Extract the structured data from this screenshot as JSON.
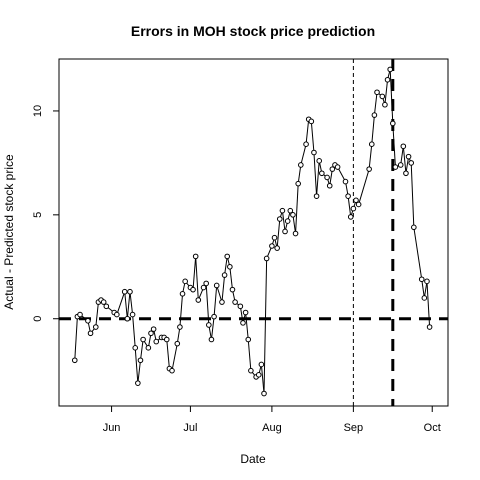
{
  "chart_data": {
    "type": "line",
    "title": "Errors in MOH stock price prediction",
    "xlabel": "Date",
    "ylabel": "Actual - Predicted stock price",
    "x_ticks": [
      {
        "date": "2016-06-01",
        "label": "Jun"
      },
      {
        "date": "2016-07-01",
        "label": "Jul"
      },
      {
        "date": "2016-08-01",
        "label": "Aug"
      },
      {
        "date": "2016-09-01",
        "label": "Sep"
      },
      {
        "date": "2016-10-01",
        "label": "Oct"
      }
    ],
    "y_ticks": [
      0,
      5,
      10
    ],
    "xlim": [
      "2016-05-12",
      "2016-10-07"
    ],
    "ylim": [
      -4.2,
      12.5
    ],
    "series": [
      {
        "values": [
          {
            "x": "2016-05-18",
            "y": -2.0
          },
          {
            "x": "2016-05-19",
            "y": 0.1
          },
          {
            "x": "2016-05-20",
            "y": 0.2
          },
          {
            "x": "2016-05-23",
            "y": -0.1
          },
          {
            "x": "2016-05-24",
            "y": -0.7
          },
          {
            "x": "2016-05-26",
            "y": -0.4
          },
          {
            "x": "2016-05-27",
            "y": 0.8
          },
          {
            "x": "2016-05-28",
            "y": 0.9
          },
          {
            "x": "2016-05-29",
            "y": 0.8
          },
          {
            "x": "2016-05-30",
            "y": 0.6
          },
          {
            "x": "2016-06-02",
            "y": 0.3
          },
          {
            "x": "2016-06-03",
            "y": 0.2
          },
          {
            "x": "2016-06-06",
            "y": 1.3
          },
          {
            "x": "2016-06-07",
            "y": 0.0
          },
          {
            "x": "2016-06-08",
            "y": 1.3
          },
          {
            "x": "2016-06-09",
            "y": 0.2
          },
          {
            "x": "2016-06-10",
            "y": -1.4
          },
          {
            "x": "2016-06-11",
            "y": -3.1
          },
          {
            "x": "2016-06-12",
            "y": -2.0
          },
          {
            "x": "2016-06-13",
            "y": -1.0
          },
          {
            "x": "2016-06-15",
            "y": -1.4
          },
          {
            "x": "2016-06-16",
            "y": -0.7
          },
          {
            "x": "2016-06-17",
            "y": -0.5
          },
          {
            "x": "2016-06-18",
            "y": -1.1
          },
          {
            "x": "2016-06-20",
            "y": -0.9
          },
          {
            "x": "2016-06-21",
            "y": -0.9
          },
          {
            "x": "2016-06-22",
            "y": -1.0
          },
          {
            "x": "2016-06-23",
            "y": -2.4
          },
          {
            "x": "2016-06-24",
            "y": -2.5
          },
          {
            "x": "2016-06-26",
            "y": -1.2
          },
          {
            "x": "2016-06-27",
            "y": -0.4
          },
          {
            "x": "2016-06-28",
            "y": 1.2
          },
          {
            "x": "2016-06-29",
            "y": 1.8
          },
          {
            "x": "2016-07-01",
            "y": 1.5
          },
          {
            "x": "2016-07-02",
            "y": 1.4
          },
          {
            "x": "2016-07-03",
            "y": 3.0
          },
          {
            "x": "2016-07-04",
            "y": 0.9
          },
          {
            "x": "2016-07-06",
            "y": 1.5
          },
          {
            "x": "2016-07-07",
            "y": 1.7
          },
          {
            "x": "2016-07-08",
            "y": -0.3
          },
          {
            "x": "2016-07-09",
            "y": -1.0
          },
          {
            "x": "2016-07-10",
            "y": 0.1
          },
          {
            "x": "2016-07-11",
            "y": 1.6
          },
          {
            "x": "2016-07-13",
            "y": 0.8
          },
          {
            "x": "2016-07-14",
            "y": 2.1
          },
          {
            "x": "2016-07-15",
            "y": 3.0
          },
          {
            "x": "2016-07-16",
            "y": 2.5
          },
          {
            "x": "2016-07-17",
            "y": 1.4
          },
          {
            "x": "2016-07-18",
            "y": 0.8
          },
          {
            "x": "2016-07-20",
            "y": 0.6
          },
          {
            "x": "2016-07-21",
            "y": -0.2
          },
          {
            "x": "2016-07-22",
            "y": 0.3
          },
          {
            "x": "2016-07-23",
            "y": -1.0
          },
          {
            "x": "2016-07-24",
            "y": -2.5
          },
          {
            "x": "2016-07-26",
            "y": -2.8
          },
          {
            "x": "2016-07-27",
            "y": -2.7
          },
          {
            "x": "2016-07-28",
            "y": -2.2
          },
          {
            "x": "2016-07-29",
            "y": -3.6
          },
          {
            "x": "2016-07-30",
            "y": 2.9
          },
          {
            "x": "2016-08-01",
            "y": 3.5
          },
          {
            "x": "2016-08-02",
            "y": 3.9
          },
          {
            "x": "2016-08-03",
            "y": 3.4
          },
          {
            "x": "2016-08-04",
            "y": 4.8
          },
          {
            "x": "2016-08-05",
            "y": 5.2
          },
          {
            "x": "2016-08-06",
            "y": 4.2
          },
          {
            "x": "2016-08-07",
            "y": 4.7
          },
          {
            "x": "2016-08-08",
            "y": 5.2
          },
          {
            "x": "2016-08-09",
            "y": 5.0
          },
          {
            "x": "2016-08-10",
            "y": 4.1
          },
          {
            "x": "2016-08-11",
            "y": 6.5
          },
          {
            "x": "2016-08-12",
            "y": 7.4
          },
          {
            "x": "2016-08-14",
            "y": 8.4
          },
          {
            "x": "2016-08-15",
            "y": 9.6
          },
          {
            "x": "2016-08-16",
            "y": 9.5
          },
          {
            "x": "2016-08-17",
            "y": 8.0
          },
          {
            "x": "2016-08-18",
            "y": 5.9
          },
          {
            "x": "2016-08-19",
            "y": 7.6
          },
          {
            "x": "2016-08-20",
            "y": 7.0
          },
          {
            "x": "2016-08-22",
            "y": 6.8
          },
          {
            "x": "2016-08-23",
            "y": 6.4
          },
          {
            "x": "2016-08-24",
            "y": 7.2
          },
          {
            "x": "2016-08-25",
            "y": 7.4
          },
          {
            "x": "2016-08-26",
            "y": 7.3
          },
          {
            "x": "2016-08-29",
            "y": 6.6
          },
          {
            "x": "2016-08-30",
            "y": 5.9
          },
          {
            "x": "2016-08-31",
            "y": 4.9
          },
          {
            "x": "2016-09-01",
            "y": 5.3
          },
          {
            "x": "2016-09-02",
            "y": 5.7
          },
          {
            "x": "2016-09-03",
            "y": 5.5
          },
          {
            "x": "2016-09-07",
            "y": 7.2
          },
          {
            "x": "2016-09-08",
            "y": 8.4
          },
          {
            "x": "2016-09-09",
            "y": 9.8
          },
          {
            "x": "2016-09-10",
            "y": 10.9
          },
          {
            "x": "2016-09-12",
            "y": 10.7
          },
          {
            "x": "2016-09-13",
            "y": 10.3
          },
          {
            "x": "2016-09-14",
            "y": 11.5
          },
          {
            "x": "2016-09-15",
            "y": 12.0
          },
          {
            "x": "2016-09-16",
            "y": 9.4
          },
          {
            "x": "2016-09-17",
            "y": 7.3
          },
          {
            "x": "2016-09-19",
            "y": 7.4
          },
          {
            "x": "2016-09-20",
            "y": 8.3
          },
          {
            "x": "2016-09-21",
            "y": 7.0
          },
          {
            "x": "2016-09-22",
            "y": 7.8
          },
          {
            "x": "2016-09-23",
            "y": 7.5
          },
          {
            "x": "2016-09-24",
            "y": 4.4
          },
          {
            "x": "2016-09-27",
            "y": 1.9
          },
          {
            "x": "2016-09-28",
            "y": 1.0
          },
          {
            "x": "2016-09-29",
            "y": 1.8
          },
          {
            "x": "2016-09-30",
            "y": -0.4
          }
        ]
      }
    ],
    "reference_lines": [
      {
        "orientation": "horizontal",
        "y": 0,
        "style": "thick-dashed"
      },
      {
        "orientation": "vertical",
        "x": "2016-09-01",
        "style": "thin-dashed"
      },
      {
        "orientation": "vertical",
        "x": "2016-09-16",
        "style": "thick-dashed"
      }
    ],
    "grid": false,
    "colors": {
      "line": "#000000",
      "point_fill": "#ffffff",
      "background": "#ffffff"
    }
  }
}
